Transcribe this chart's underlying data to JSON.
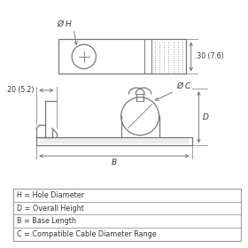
{
  "bg_color": "#ffffff",
  "line_color": "#777777",
  "text_color": "#333333",
  "legend_rows": [
    "C = Compatible Cable Diameter Range",
    "B = Base Length",
    "D = Overall Height",
    "H = Hole Diameter"
  ],
  "dim1_label": ".30 (7.6)",
  "dim2_label": ".20 (5.2)",
  "label_C": "Ø C",
  "label_H": "Ø H",
  "label_B": "B",
  "label_D": "D"
}
